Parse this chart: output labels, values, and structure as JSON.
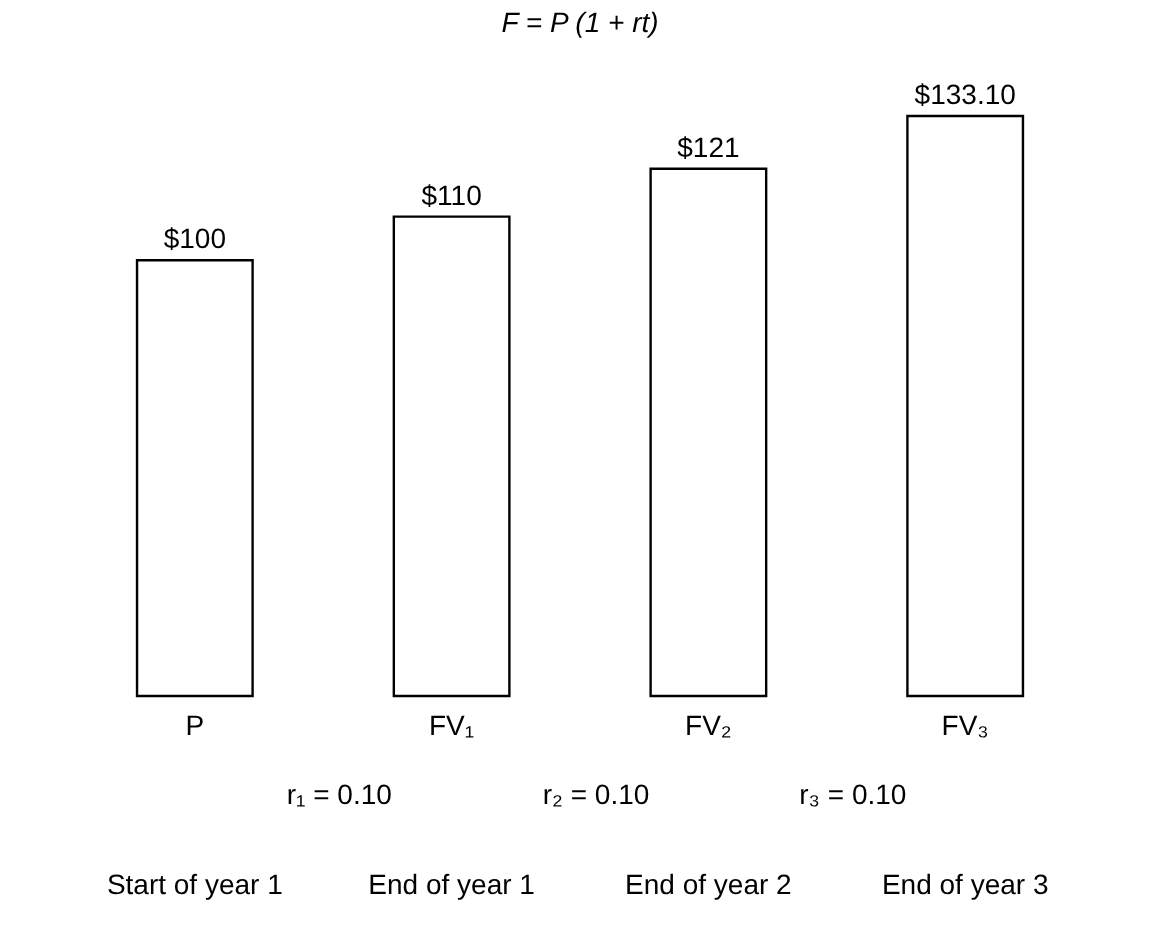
{
  "chart_data": {
    "type": "bar",
    "title": "F = P (1 + rt)",
    "categories": [
      "P",
      "FV₁",
      "FV₂",
      "FV₃"
    ],
    "values": [
      100,
      110,
      121,
      133.1
    ],
    "value_labels": [
      "$100",
      "$110",
      "$121",
      "$133.10"
    ],
    "color": "#ffffff",
    "annotations": [
      "r₁ = 0.10",
      "r₂ = 0.10",
      "r₃ = 0.10",
      "Start of year 1",
      "End of year 1",
      "End of year 2",
      "End of year 3"
    ]
  }
}
